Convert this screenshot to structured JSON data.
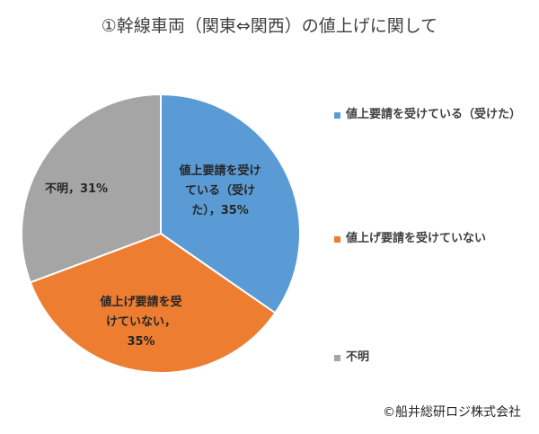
{
  "chart_data": {
    "type": "pie",
    "title": "①幹線車両（関東⇔関西）の値上げに関して",
    "slices": [
      {
        "label": "値上要請を受けている（受けた）",
        "value": 35,
        "color": "#5B9BD5",
        "data_label_lines": [
          "値上要請を受け",
          "ている（受け",
          "た），35%"
        ]
      },
      {
        "label": "値上げ要請を受けていない",
        "value": 35,
        "color": "#ED7D31",
        "data_label_lines": [
          "値上げ要請を受",
          "けていない，",
          "35%"
        ]
      },
      {
        "label": "不明",
        "value": 31,
        "color": "#A5A5A5",
        "data_label_lines": [
          "不明，31%"
        ]
      }
    ],
    "legend_position": "right",
    "start_angle_deg": 0,
    "direction": "clockwise"
  },
  "credit": "©船井総研ロジ株式会社"
}
